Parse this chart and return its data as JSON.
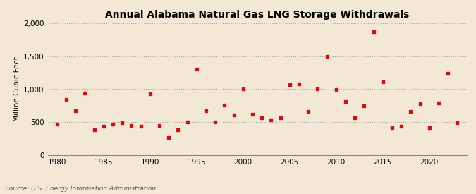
{
  "title": "Annual Alabama Natural Gas LNG Storage Withdrawals",
  "ylabel": "Million Cubic Feet",
  "source": "Source: U.S. Energy Information Administration",
  "xlim": [
    1979,
    2024
  ],
  "ylim": [
    0,
    2000
  ],
  "yticks": [
    0,
    500,
    1000,
    1500,
    2000
  ],
  "ytick_labels": [
    "0",
    "500",
    "1,000",
    "1,500",
    "2,000"
  ],
  "xticks": [
    1980,
    1985,
    1990,
    1995,
    2000,
    2005,
    2010,
    2015,
    2020
  ],
  "background_color": "#f2e8d5",
  "grid_color": "#aaaaaa",
  "marker_color": "#cc1111",
  "years": [
    1980,
    1981,
    1982,
    1983,
    1984,
    1985,
    1986,
    1987,
    1988,
    1989,
    1990,
    1991,
    1992,
    1993,
    1994,
    1995,
    1996,
    1997,
    1998,
    1999,
    2000,
    2001,
    2002,
    2003,
    2004,
    2005,
    2006,
    2007,
    2008,
    2009,
    2010,
    2011,
    2012,
    2013,
    2014,
    2015,
    2016,
    2017,
    2018,
    2019,
    2020,
    2021,
    2022,
    2023
  ],
  "values": [
    470,
    850,
    670,
    940,
    380,
    440,
    470,
    490,
    450,
    440,
    930,
    450,
    270,
    390,
    500,
    1300,
    670,
    500,
    760,
    610,
    1010,
    620,
    570,
    540,
    570,
    1070,
    1080,
    660,
    1000,
    1500,
    990,
    810,
    570,
    750,
    1870,
    1110,
    420,
    440,
    660,
    780,
    420,
    790,
    1240,
    490
  ]
}
